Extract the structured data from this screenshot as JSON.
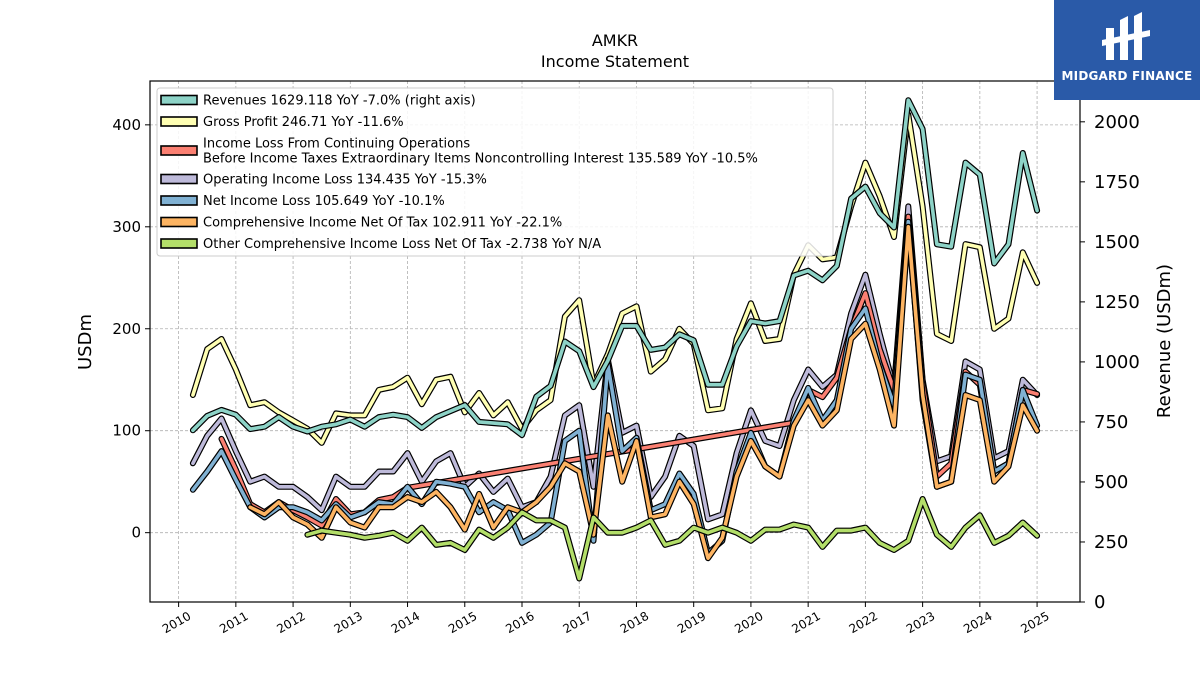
{
  "title": {
    "ticker": "AMKR",
    "subtitle": "Income Statement"
  },
  "brand": {
    "name": "MIDGARD FINANCE",
    "logo_icon": "midgard-logo-icon"
  },
  "chart_data": {
    "type": "line",
    "xlabel": "",
    "ylabel_left": "USDm",
    "ylabel_right": "Revenue (USDm)",
    "ylim_left": [
      -68,
      443
    ],
    "yticks_left": [
      0,
      100,
      200,
      300,
      400
    ],
    "ylim_right": [
      0,
      2170
    ],
    "yticks_right": [
      0,
      250,
      500,
      750,
      1000,
      1250,
      1500,
      1750,
      2000
    ],
    "xlim": [
      2009.5,
      2025.75
    ],
    "xticks": [
      "2010",
      "2011",
      "2012",
      "2013",
      "2014",
      "2015",
      "2016",
      "2017",
      "2018",
      "2019",
      "2020",
      "2021",
      "2022",
      "2023",
      "2024",
      "2025"
    ],
    "grid": true,
    "legend_position": "upper-left",
    "series": [
      {
        "name": "Revenues  1629.118 YoY -7.0% (right axis)",
        "axis": "right",
        "color": "#8dd3c7",
        "x": [
          2010.25,
          2010.5,
          2010.75,
          2011.0,
          2011.25,
          2011.5,
          2011.75,
          2012.0,
          2012.25,
          2012.5,
          2012.75,
          2013.0,
          2013.25,
          2013.5,
          2013.75,
          2014.0,
          2014.25,
          2014.5,
          2014.75,
          2015.0,
          2015.25,
          2015.5,
          2015.75,
          2016.0,
          2016.25,
          2016.5,
          2016.75,
          2017.0,
          2017.25,
          2017.5,
          2017.75,
          2018.0,
          2018.25,
          2018.5,
          2018.75,
          2019.0,
          2019.25,
          2019.5,
          2019.75,
          2020.0,
          2020.25,
          2020.5,
          2020.75,
          2021.0,
          2021.25,
          2021.5,
          2021.75,
          2022.0,
          2022.25,
          2022.5,
          2022.75,
          2023.0,
          2023.25,
          2023.5,
          2023.75,
          2024.0,
          2024.25,
          2024.5,
          2024.75,
          2025.0
        ],
        "values": [
          715,
          775,
          800,
          780,
          720,
          730,
          770,
          730,
          710,
          730,
          740,
          760,
          730,
          770,
          780,
          770,
          725,
          770,
          795,
          820,
          750,
          745,
          740,
          695,
          855,
          900,
          1085,
          1045,
          895,
          1005,
          1150,
          1150,
          1050,
          1060,
          1115,
          1090,
          905,
          905,
          1065,
          1170,
          1160,
          1170,
          1360,
          1380,
          1340,
          1400,
          1680,
          1730,
          1620,
          1560,
          2090,
          1970,
          1490,
          1480,
          1830,
          1780,
          1410,
          1490,
          1870,
          1630
        ]
      },
      {
        "name": "Gross Profit  246.71 YoY -11.6%",
        "axis": "left",
        "color": "#ffffb3",
        "x": [
          2010.25,
          2010.5,
          2010.75,
          2011.0,
          2011.25,
          2011.5,
          2011.75,
          2012.0,
          2012.25,
          2012.5,
          2012.75,
          2013.0,
          2013.25,
          2013.5,
          2013.75,
          2014.0,
          2014.25,
          2014.5,
          2014.75,
          2015.0,
          2015.25,
          2015.5,
          2015.75,
          2016.0,
          2016.25,
          2016.5,
          2016.75,
          2017.0,
          2017.25,
          2017.5,
          2017.75,
          2018.0,
          2018.25,
          2018.5,
          2018.75,
          2019.0,
          2019.25,
          2019.5,
          2019.75,
          2020.0,
          2020.25,
          2020.5,
          2020.75,
          2021.0,
          2021.25,
          2021.5,
          2021.75,
          2022.0,
          2022.25,
          2022.5,
          2022.75,
          2023.0,
          2023.25,
          2023.5,
          2023.75,
          2024.0,
          2024.25,
          2024.5,
          2024.75,
          2025.0
        ],
        "values": [
          135,
          180,
          190,
          160,
          125,
          128,
          118,
          110,
          102,
          88,
          117,
          115,
          115,
          140,
          143,
          152,
          126,
          150,
          153,
          118,
          137,
          115,
          128,
          102,
          120,
          130,
          212,
          228,
          145,
          175,
          215,
          222,
          158,
          170,
          200,
          185,
          120,
          122,
          190,
          225,
          188,
          190,
          253,
          282,
          268,
          270,
          320,
          363,
          330,
          290,
          410,
          320,
          195,
          188,
          283,
          280,
          200,
          210,
          275,
          245
        ]
      },
      {
        "name": "Income Loss From Continuing Operations\nBefore Income Taxes Extraordinary Items Noncontrolling Interest  135.589 YoY -10.5%",
        "axis": "left",
        "color": "#fb8072",
        "x": [
          2010.75,
          2011.0,
          2011.25,
          2011.5,
          2011.75,
          2012.0,
          2012.25,
          2012.5,
          2012.75,
          2013.0,
          2013.25,
          2013.5,
          2013.75,
          2014.0,
          2020.75,
          2021.0,
          2021.25,
          2021.5,
          2021.75,
          2022.0,
          2022.25,
          2022.5,
          2022.75,
          2023.0,
          2023.25,
          2023.5,
          2023.75,
          2024.0,
          2024.25,
          2024.5,
          2024.75,
          2025.0
        ],
        "values": [
          92,
          62,
          28,
          20,
          30,
          22,
          15,
          7,
          33,
          18,
          20,
          32,
          35,
          44,
          108,
          140,
          133,
          152,
          200,
          235,
          180,
          140,
          310,
          148,
          55,
          68,
          158,
          145,
          60,
          68,
          140,
          136
        ]
      },
      {
        "name": "Operating Income Loss  134.435 YoY -15.3%",
        "axis": "left",
        "color": "#bebada",
        "x": [
          2010.25,
          2010.5,
          2010.75,
          2011.0,
          2011.25,
          2011.5,
          2011.75,
          2012.0,
          2012.25,
          2012.5,
          2012.75,
          2013.0,
          2013.25,
          2013.5,
          2013.75,
          2014.0,
          2014.25,
          2014.5,
          2014.75,
          2015.0,
          2015.25,
          2015.5,
          2015.75,
          2016.0,
          2016.25,
          2016.5,
          2016.75,
          2017.0,
          2017.25,
          2017.5,
          2017.75,
          2018.0,
          2018.25,
          2018.5,
          2018.75,
          2019.0,
          2019.25,
          2019.5,
          2019.75,
          2020.0,
          2020.25,
          2020.5,
          2020.75,
          2021.0,
          2021.25,
          2021.5,
          2021.75,
          2022.0,
          2022.25,
          2022.5,
          2022.75,
          2023.0,
          2023.25,
          2023.5,
          2023.75,
          2024.0,
          2024.25,
          2024.5,
          2024.75,
          2025.0
        ],
        "values": [
          68,
          95,
          112,
          80,
          50,
          55,
          45,
          45,
          35,
          22,
          55,
          45,
          45,
          60,
          60,
          78,
          50,
          70,
          78,
          45,
          58,
          40,
          53,
          25,
          30,
          55,
          115,
          125,
          45,
          170,
          98,
          105,
          35,
          55,
          95,
          85,
          13,
          18,
          78,
          120,
          90,
          85,
          130,
          160,
          143,
          155,
          215,
          253,
          195,
          142,
          320,
          150,
          70,
          75,
          168,
          160,
          73,
          80,
          150,
          135
        ]
      },
      {
        "name": "Net Income Loss  105.649 YoY -10.1%",
        "axis": "left",
        "color": "#80b1d3",
        "x": [
          2010.25,
          2010.5,
          2010.75,
          2011.0,
          2011.25,
          2011.5,
          2011.75,
          2012.0,
          2012.25,
          2012.5,
          2012.75,
          2013.0,
          2013.25,
          2013.5,
          2013.75,
          2014.0,
          2014.25,
          2014.5,
          2014.75,
          2015.0,
          2015.25,
          2015.5,
          2015.75,
          2016.0,
          2016.25,
          2016.5,
          2016.75,
          2017.0,
          2017.25,
          2017.5,
          2017.75,
          2018.0,
          2018.25,
          2018.5,
          2018.75,
          2019.0,
          2019.25,
          2019.5,
          2019.75,
          2020.0,
          2020.25,
          2020.5,
          2020.75,
          2021.0,
          2021.25,
          2021.5,
          2021.75,
          2022.0,
          2022.25,
          2022.5,
          2022.75,
          2023.0,
          2023.25,
          2023.5,
          2023.75,
          2024.0,
          2024.25,
          2024.5,
          2024.75,
          2025.0
        ],
        "values": [
          42,
          60,
          80,
          52,
          25,
          15,
          25,
          25,
          20,
          12,
          28,
          15,
          20,
          30,
          28,
          45,
          28,
          50,
          48,
          45,
          20,
          30,
          22,
          -10,
          -2,
          10,
          90,
          100,
          -8,
          165,
          80,
          93,
          22,
          28,
          58,
          38,
          -20,
          -8,
          60,
          98,
          65,
          55,
          110,
          142,
          110,
          130,
          200,
          220,
          165,
          125,
          305,
          130,
          45,
          50,
          155,
          150,
          60,
          68,
          140,
          105
        ]
      },
      {
        "name": "Comprehensive Income Net Of Tax  102.911 YoY -22.1%",
        "axis": "left",
        "color": "#fdb462",
        "x": [
          2011.25,
          2011.5,
          2011.75,
          2012.0,
          2012.25,
          2012.5,
          2012.75,
          2013.0,
          2013.25,
          2013.5,
          2013.75,
          2014.0,
          2014.25,
          2014.5,
          2014.75,
          2015.0,
          2015.25,
          2015.5,
          2015.75,
          2016.0,
          2016.25,
          2016.5,
          2016.75,
          2017.0,
          2017.25,
          2017.5,
          2017.75,
          2018.0,
          2018.25,
          2018.5,
          2018.75,
          2019.0,
          2019.25,
          2019.5,
          2019.75,
          2020.0,
          2020.25,
          2020.5,
          2020.75,
          2021.0,
          2021.25,
          2021.5,
          2021.75,
          2022.0,
          2022.25,
          2022.5,
          2022.75,
          2023.0,
          2023.25,
          2023.5,
          2023.75,
          2024.0,
          2024.25,
          2024.5,
          2024.75,
          2025.0
        ],
        "values": [
          25,
          18,
          30,
          15,
          8,
          -5,
          25,
          10,
          5,
          25,
          25,
          35,
          30,
          40,
          25,
          3,
          38,
          5,
          25,
          20,
          30,
          45,
          68,
          60,
          -2,
          115,
          50,
          90,
          15,
          18,
          50,
          28,
          -25,
          -5,
          55,
          90,
          65,
          55,
          105,
          130,
          105,
          120,
          190,
          205,
          160,
          105,
          300,
          135,
          45,
          50,
          135,
          130,
          50,
          65,
          125,
          100
        ]
      },
      {
        "name": "Other Comprehensive Income Loss Net Of Tax  -2.738 YoY N/A",
        "axis": "left",
        "color": "#b3de69",
        "x": [
          2012.25,
          2012.5,
          2012.75,
          2013.0,
          2013.25,
          2013.5,
          2013.75,
          2014.0,
          2014.25,
          2014.5,
          2014.75,
          2015.0,
          2015.25,
          2015.5,
          2015.75,
          2016.0,
          2016.25,
          2016.5,
          2016.75,
          2017.0,
          2017.25,
          2017.5,
          2017.75,
          2018.0,
          2018.25,
          2018.5,
          2018.75,
          2019.0,
          2019.25,
          2019.5,
          2019.75,
          2020.0,
          2020.25,
          2020.5,
          2020.75,
          2021.0,
          2021.25,
          2021.5,
          2021.75,
          2022.0,
          2022.25,
          2022.5,
          2022.75,
          2023.0,
          2023.25,
          2023.5,
          2023.75,
          2024.0,
          2024.25,
          2024.5,
          2024.75,
          2025.0
        ],
        "values": [
          -2,
          2,
          0,
          -2,
          -5,
          -3,
          0,
          -8,
          5,
          -12,
          -10,
          -17,
          3,
          -5,
          5,
          20,
          12,
          12,
          5,
          -45,
          15,
          0,
          0,
          5,
          12,
          -12,
          -8,
          5,
          0,
          5,
          0,
          -8,
          3,
          3,
          8,
          5,
          -14,
          2,
          2,
          5,
          -10,
          -17,
          -8,
          33,
          -2,
          -14,
          5,
          17,
          -10,
          -3,
          10,
          -3
        ]
      }
    ]
  }
}
